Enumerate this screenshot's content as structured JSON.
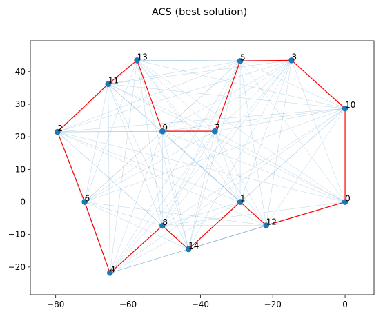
{
  "chart_data": {
    "type": "scatter",
    "title": "ACS (best solution)",
    "xlabel": "",
    "ylabel": "",
    "xlim": [
      -87,
      8
    ],
    "ylim": [
      -28.5,
      49.5
    ],
    "xticks": [
      -80,
      -60,
      -40,
      -20,
      0
    ],
    "yticks": [
      -20,
      -10,
      0,
      10,
      20,
      30,
      40
    ],
    "xtick_labels": [
      "−80",
      "−60",
      "−40",
      "−20",
      "0"
    ],
    "ytick_labels": [
      "−20",
      "−10",
      "0",
      "10",
      "20",
      "30",
      "40"
    ],
    "grid": false,
    "nodes": [
      {
        "label": "0",
        "x": 0.0,
        "y": 0.0
      },
      {
        "label": "1",
        "x": -29.0,
        "y": 0.0
      },
      {
        "label": "2",
        "x": -79.5,
        "y": 21.5
      },
      {
        "label": "3",
        "x": -14.8,
        "y": 43.5
      },
      {
        "label": "4",
        "x": -65.0,
        "y": -21.8
      },
      {
        "label": "5",
        "x": -29.0,
        "y": 43.3
      },
      {
        "label": "6",
        "x": -72.0,
        "y": 0.0
      },
      {
        "label": "7",
        "x": -36.0,
        "y": 21.7
      },
      {
        "label": "8",
        "x": -50.5,
        "y": -7.3
      },
      {
        "label": "9",
        "x": -50.5,
        "y": 21.7
      },
      {
        "label": "10",
        "x": 0.0,
        "y": 28.7
      },
      {
        "label": "11",
        "x": -65.5,
        "y": 36.2
      },
      {
        "label": "12",
        "x": -21.8,
        "y": -7.2
      },
      {
        "label": "13",
        "x": -57.5,
        "y": 43.5
      },
      {
        "label": "14",
        "x": -43.3,
        "y": -14.5
      }
    ],
    "best_tour": [
      0,
      10,
      3,
      5,
      7,
      9,
      13,
      11,
      2,
      6,
      4,
      8,
      14,
      1,
      12,
      0
    ],
    "colors": {
      "node": "#1f77b4",
      "tour_edge": "#ff0000",
      "pheromone_edge": "#1f77b4",
      "axis": "#000000",
      "text": "#000000"
    }
  }
}
